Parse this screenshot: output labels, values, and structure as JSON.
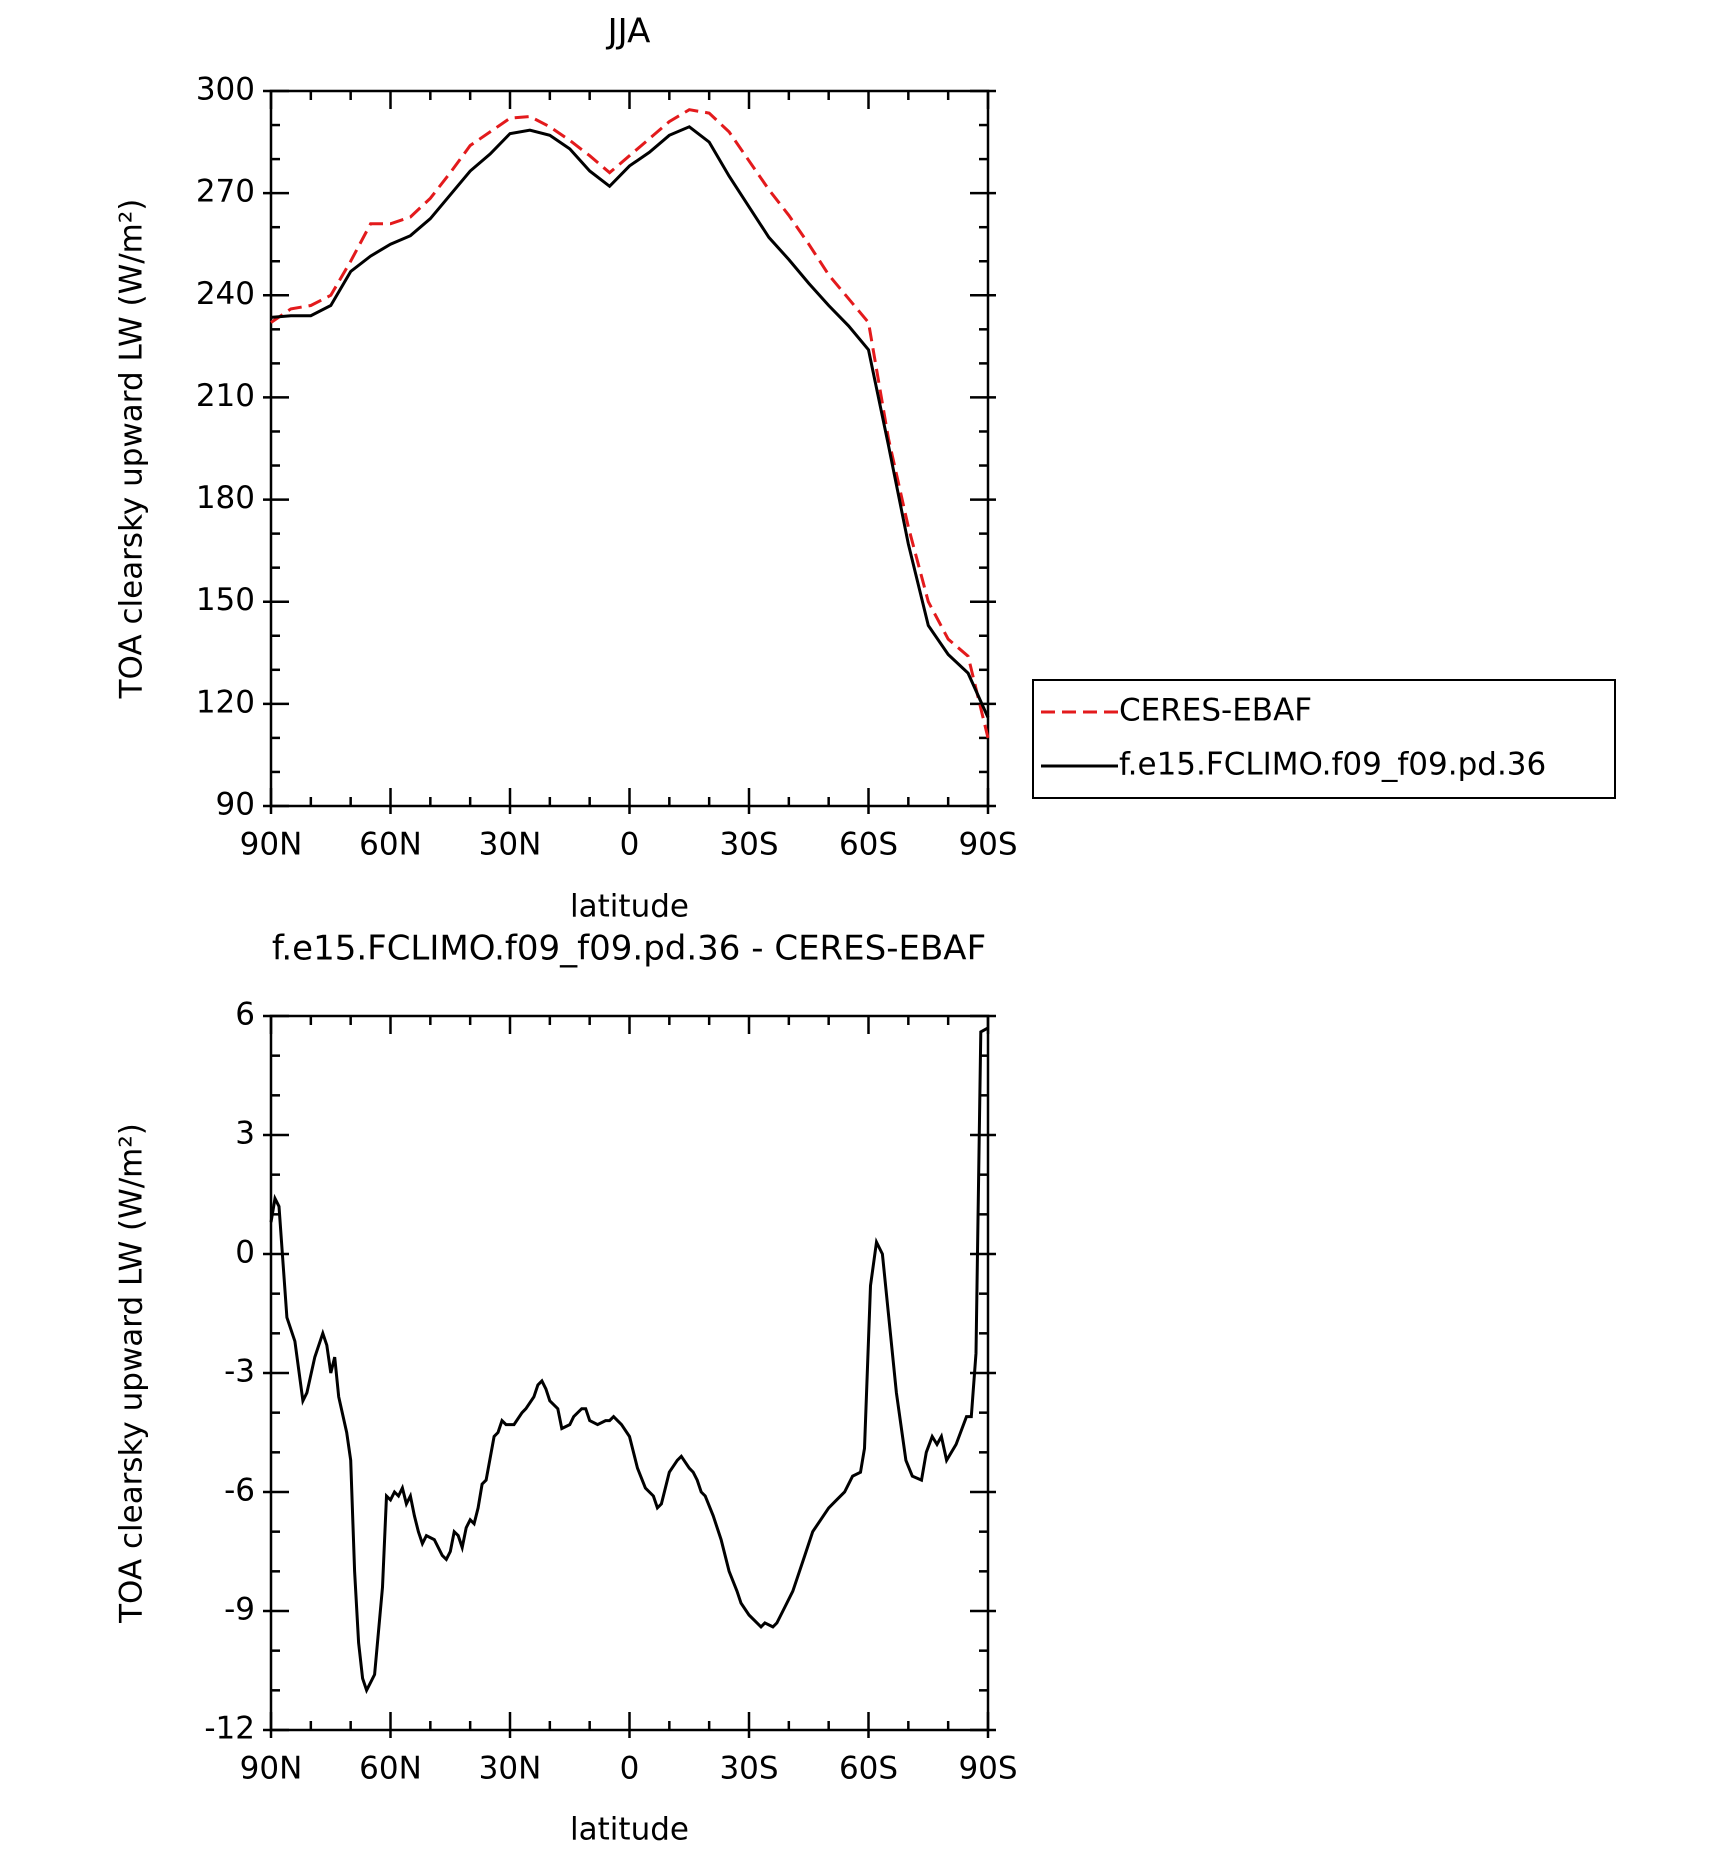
{
  "chart_data": [
    {
      "type": "line",
      "title": "JJA",
      "xlabel": "latitude",
      "ylabel": "TOA clearsky upward LW (W/m²)",
      "x": [
        90,
        85,
        80,
        75,
        70,
        65,
        60,
        55,
        50,
        45,
        40,
        35,
        30,
        25,
        20,
        15,
        10,
        5,
        0,
        -5,
        -10,
        -15,
        -20,
        -25,
        -30,
        -35,
        -40,
        -45,
        -50,
        -55,
        -60,
        -65,
        -70,
        -75,
        -80,
        -85,
        -90
      ],
      "series": [
        {
          "name": "CERES-EBAF",
          "color": "#e31a1c",
          "linestyle": "dashed",
          "values": [
            232,
            236,
            237,
            240,
            250,
            261,
            261,
            263,
            268.5,
            276,
            284,
            288,
            292,
            292.5,
            289.5,
            285.5,
            281,
            276,
            281,
            286,
            291,
            294.5,
            293.5,
            288,
            279.5,
            271,
            263.5,
            255,
            246,
            239,
            232,
            198,
            172,
            150,
            139,
            134,
            110
          ]
        },
        {
          "name": "f.e15.FCLIMO.f09_f09.pd.36",
          "color": "#000000",
          "linestyle": "solid",
          "values": [
            233.5,
            234,
            234,
            237,
            247,
            251.5,
            255,
            257.5,
            262.5,
            269.5,
            276.5,
            281.5,
            287.5,
            288.5,
            287,
            283,
            276.5,
            272,
            278,
            282,
            287,
            289.5,
            285,
            275,
            266,
            257,
            250.5,
            243.5,
            237,
            231,
            224,
            196,
            167,
            143,
            134.5,
            129,
            116
          ]
        }
      ],
      "xlim": [
        90,
        -90
      ],
      "xticks": [
        {
          "value": 90,
          "label": "90N"
        },
        {
          "value": 60,
          "label": "60N"
        },
        {
          "value": 30,
          "label": "30N"
        },
        0,
        {
          "value": -30,
          "label": "30S"
        },
        {
          "value": -60,
          "label": "60S"
        },
        {
          "value": -90,
          "label": "90S"
        }
      ],
      "ylim": [
        90,
        300
      ],
      "yticks": [
        90,
        120,
        150,
        180,
        210,
        240,
        270,
        300
      ],
      "legend": "right"
    },
    {
      "type": "line",
      "title": "f.e15.FCLIMO.f09_f09.pd.36 - CERES-EBAF",
      "xlabel": "latitude",
      "ylabel": "TOA clearsky upward LW (W/m²)",
      "x": [
        90,
        89,
        88,
        86,
        84,
        82,
        81,
        79,
        77,
        76,
        75,
        74,
        73,
        71,
        70,
        69,
        68,
        67,
        66,
        65,
        64,
        62,
        61,
        60,
        59,
        58,
        57,
        56,
        55,
        54,
        53,
        52,
        51,
        49,
        47,
        46,
        45,
        44,
        43,
        42,
        41,
        40,
        39,
        38,
        37,
        36,
        34,
        33,
        32,
        31,
        29,
        27,
        26,
        24,
        23,
        22,
        21,
        20,
        18,
        17,
        15,
        14,
        12,
        11,
        10,
        8,
        6,
        5,
        4,
        3,
        2,
        0,
        -2,
        -4,
        -6,
        -7,
        -8,
        -10,
        -12,
        -13,
        -15,
        -16,
        -17,
        -18,
        -19,
        -21,
        -23,
        -25,
        -27,
        -28,
        -30,
        -32,
        -33,
        -34,
        -36,
        -37,
        -39,
        -41,
        -42,
        -44,
        -46,
        -48,
        -50,
        -52,
        -54,
        -56,
        -58,
        -59,
        -60.5,
        -62,
        -63.5,
        -65,
        -67,
        -69.4,
        -71,
        -73.3,
        -74.5,
        -76,
        -77.2,
        -78.3,
        -79.6,
        -82,
        -84.6,
        -85.8,
        -87,
        -88.2,
        -90
      ],
      "series": [
        {
          "name": "f.e15.FCLIMO.f09_f09.pd.36 - CERES-EBAF",
          "color": "#000000",
          "values": [
            0.8,
            1.4,
            1.2,
            -1.6,
            -2.2,
            -3.7,
            -3.5,
            -2.6,
            -2.0,
            -2.3,
            -3.0,
            -2.6,
            -3.6,
            -4.5,
            -5.2,
            -8,
            -9.8,
            -10.7,
            -11,
            -10.8,
            -10.6,
            -8.4,
            -6.1,
            -6.2,
            -6.0,
            -6.1,
            -5.9,
            -6.3,
            -6.1,
            -6.6,
            -7.0,
            -7.3,
            -7.1,
            -7.2,
            -7.6,
            -7.7,
            -7.5,
            -7.0,
            -7.1,
            -7.4,
            -6.9,
            -6.7,
            -6.8,
            -6.4,
            -5.8,
            -5.7,
            -4.6,
            -4.5,
            -4.2,
            -4.3,
            -4.3,
            -4.0,
            -3.9,
            -3.6,
            -3.3,
            -3.2,
            -3.4,
            -3.7,
            -3.9,
            -4.4,
            -4.3,
            -4.1,
            -3.9,
            -3.9,
            -4.2,
            -4.3,
            -4.2,
            -4.2,
            -4.1,
            -4.2,
            -4.3,
            -4.6,
            -5.4,
            -5.9,
            -6.1,
            -6.4,
            -6.3,
            -5.5,
            -5.2,
            -5.1,
            -5.4,
            -5.5,
            -5.7,
            -6.0,
            -6.1,
            -6.6,
            -7.2,
            -8.0,
            -8.5,
            -8.8,
            -9.1,
            -9.3,
            -9.4,
            -9.3,
            -9.4,
            -9.3,
            -8.9,
            -8.5,
            -8.2,
            -7.6,
            -7.0,
            -6.7,
            -6.4,
            -6.2,
            -6.0,
            -5.6,
            -5.5,
            -4.9,
            -0.8,
            0.3,
            0.0,
            -1.5,
            -3.5,
            -5.2,
            -5.6,
            -5.7,
            -5.0,
            -4.6,
            -4.8,
            -4.6,
            -5.2,
            -4.8,
            -4.1,
            -4.1,
            -2.5,
            5.6,
            5.7
          ]
        }
      ],
      "xlim": [
        90,
        -90
      ],
      "xticks": [
        {
          "value": 90,
          "label": "90N"
        },
        {
          "value": 60,
          "label": "60N"
        },
        {
          "value": 30,
          "label": "30N"
        },
        0,
        {
          "value": -30,
          "label": "30S"
        },
        {
          "value": -60,
          "label": "60S"
        },
        {
          "value": -90,
          "label": "90S"
        }
      ],
      "ylim": [
        -12,
        6
      ],
      "yticks": [
        -12,
        -9,
        -6,
        -3,
        0,
        3,
        6
      ]
    }
  ]
}
